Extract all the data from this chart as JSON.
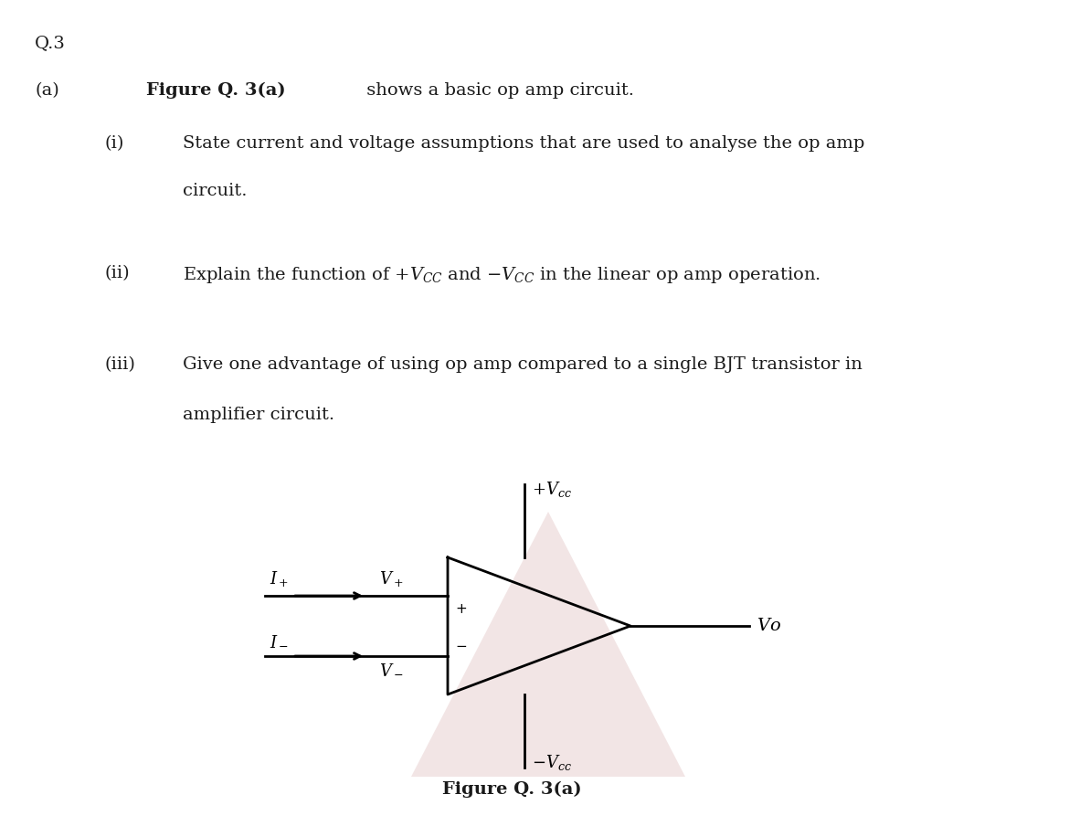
{
  "background_color": "#ffffff",
  "text_color": "#1a1a1a",
  "q3_label": "Q.3",
  "part_a_label": "(a)",
  "part_a_bold": "Figure Q. 3(a)",
  "part_a_rest": " shows a basic op amp circuit.",
  "part_i_label": "(i)",
  "part_i_line1": "State current and voltage assumptions that are used to analyse the op amp",
  "part_i_line2": "circuit.",
  "part_ii_label": "(ii)",
  "part_ii_pre": "Explain the function of ",
  "part_ii_vcc_pos": "+$V_{CC}$",
  "part_ii_mid": " and ",
  "part_ii_vcc_neg": "-$V_{CC}$",
  "part_ii_post": " in the linear op amp operation.",
  "part_iii_label": "(iii)",
  "part_iii_line1": "Give one advantage of using op amp compared to a single BJT transistor in",
  "part_iii_line2": "amplifier circuit.",
  "fig_caption": "Figure Q. 3(a)",
  "op_amp_color": "#000000",
  "line_width": 2.0,
  "font_size_body": 14,
  "watermark_color": "#cc9999",
  "watermark_alpha": 0.25
}
